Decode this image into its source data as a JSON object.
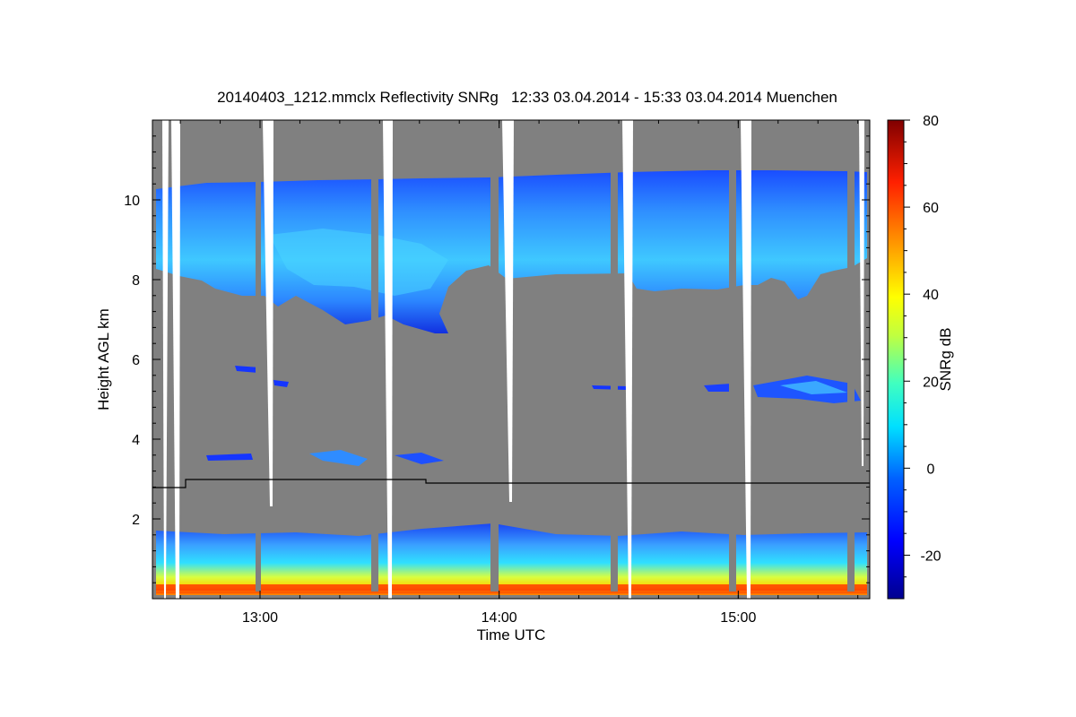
{
  "chart_data": {
    "type": "heatmap",
    "title": "20140403_1212.mmclx Reflectivity SNRg   12:33 03.04.2014 - 15:33 03.04.2014 Muenchen",
    "xlabel": "Time UTC",
    "ylabel": "Height AGL km",
    "colorbar_label": "SNRg dB",
    "x_range": [
      "12:33",
      "15:33"
    ],
    "x_ticks": [
      "13:00",
      "14:00",
      "15:00"
    ],
    "ylim": [
      0,
      12
    ],
    "y_ticks": [
      2,
      4,
      6,
      8,
      10
    ],
    "colorbar_range": [
      -30,
      80
    ],
    "colorbar_ticks": [
      -20,
      0,
      20,
      40,
      60,
      80
    ],
    "colormap": [
      "#00008f",
      "#0000ff",
      "#0080ff",
      "#00ffff",
      "#80ff80",
      "#ffff00",
      "#ff8000",
      "#ff0000",
      "#800000"
    ],
    "background_color": "#808080",
    "gap_color": "#ffffff",
    "cirrus_layer": {
      "top_km": [
        10.3,
        10.5,
        10.4,
        10.6,
        10.7
      ],
      "base_km": [
        8.0,
        7.3,
        6.6,
        8.0,
        7.6
      ],
      "snr_db": [
        0,
        10
      ]
    },
    "boundary_layer": {
      "top_km": 1.6,
      "snr_db": [
        5,
        60
      ]
    },
    "threshold_line_km": [
      {
        "from": "12:33",
        "to": "12:41",
        "height_km": 2.75
      },
      {
        "from": "12:41",
        "to": "13:40",
        "height_km": 2.95
      },
      {
        "from": "13:40",
        "to": "15:33",
        "height_km": 2.85
      }
    ]
  }
}
